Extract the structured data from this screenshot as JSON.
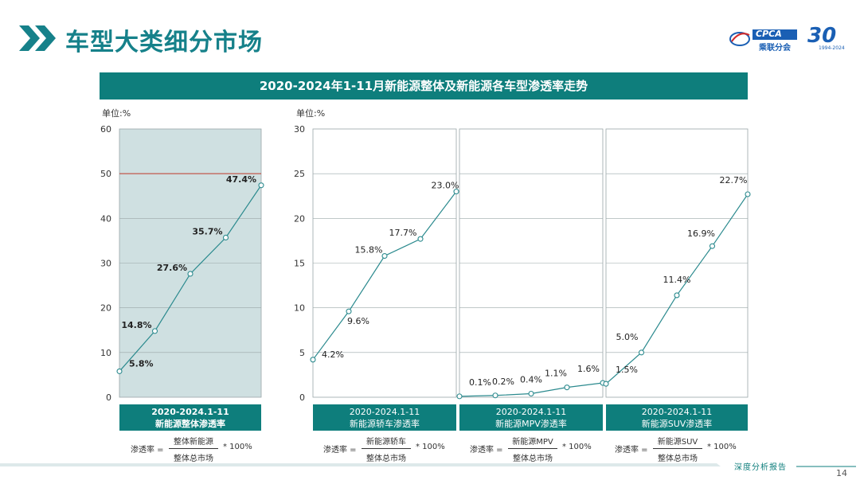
{
  "header": {
    "title": "车型大类细分市场",
    "logo_text": "CPCA",
    "logo_cn": "乘联分会",
    "anniv_number": "30",
    "anniv_years": "1994-2024"
  },
  "banner": "2020-2024年1-11月新能源整体及新能源各车型渗透率走势",
  "chart_data": [
    {
      "type": "line",
      "title": "新能源整体渗透率",
      "period": "2020-2024.1-11",
      "unit_label": "单位:%",
      "ylim": [
        0,
        60
      ],
      "yticks": [
        "0",
        "10",
        "20",
        "30",
        "40",
        "50",
        "60"
      ],
      "reference_line": 50,
      "values": [
        5.8,
        14.8,
        27.6,
        35.7,
        47.4
      ],
      "labels": [
        "5.8%",
        "14.8%",
        "27.6%",
        "35.7%",
        "47.4%"
      ]
    },
    {
      "type": "line",
      "title": "新能源轿车渗透率",
      "period": "2020-2024.1-11",
      "unit_label": "单位:%",
      "ylim": [
        0,
        30
      ],
      "yticks": [
        "0",
        "5",
        "10",
        "15",
        "20",
        "25",
        "30"
      ],
      "values": [
        4.2,
        9.6,
        15.8,
        17.7,
        23.0
      ],
      "labels": [
        "4.2%",
        "9.6%",
        "15.8%",
        "17.7%",
        "23.0%"
      ]
    },
    {
      "type": "line",
      "title": "新能源MPV渗透率",
      "period": "2020-2024.1-11",
      "ylim": [
        0,
        30
      ],
      "values": [
        0.1,
        0.2,
        0.4,
        1.1,
        1.6
      ],
      "labels": [
        "0.1%",
        "0.2%",
        "0.4%",
        "1.1%",
        "1.6%"
      ]
    },
    {
      "type": "line",
      "title": "新能源SUV渗透率",
      "period": "2020-2024.1-11",
      "ylim": [
        0,
        30
      ],
      "values": [
        1.5,
        5.0,
        11.4,
        16.9,
        22.7
      ],
      "labels": [
        "1.5%",
        "5.0%",
        "11.4%",
        "16.9%",
        "22.7%"
      ]
    }
  ],
  "formulas": [
    {
      "lhs": "渗透率 =",
      "num": "整体新能源",
      "den": "整体总市场",
      "rhs": "* 100%"
    },
    {
      "lhs": "渗透率 =",
      "num": "新能源轿车",
      "den": "整体总市场",
      "rhs": "* 100%"
    },
    {
      "lhs": "渗透率 =",
      "num": "新能源MPV",
      "den": "整体总市场",
      "rhs": "* 100%"
    },
    {
      "lhs": "渗透率 =",
      "num": "新能源SUV",
      "den": "整体总市场",
      "rhs": "* 100%"
    }
  ],
  "footer": {
    "text": "深度分析报告",
    "page": "14"
  },
  "colors": {
    "teal": "#0e7e7c",
    "line": "#2b8a8e",
    "panel_fill": "#cfe0e1",
    "ref_line": "#c0392b"
  }
}
